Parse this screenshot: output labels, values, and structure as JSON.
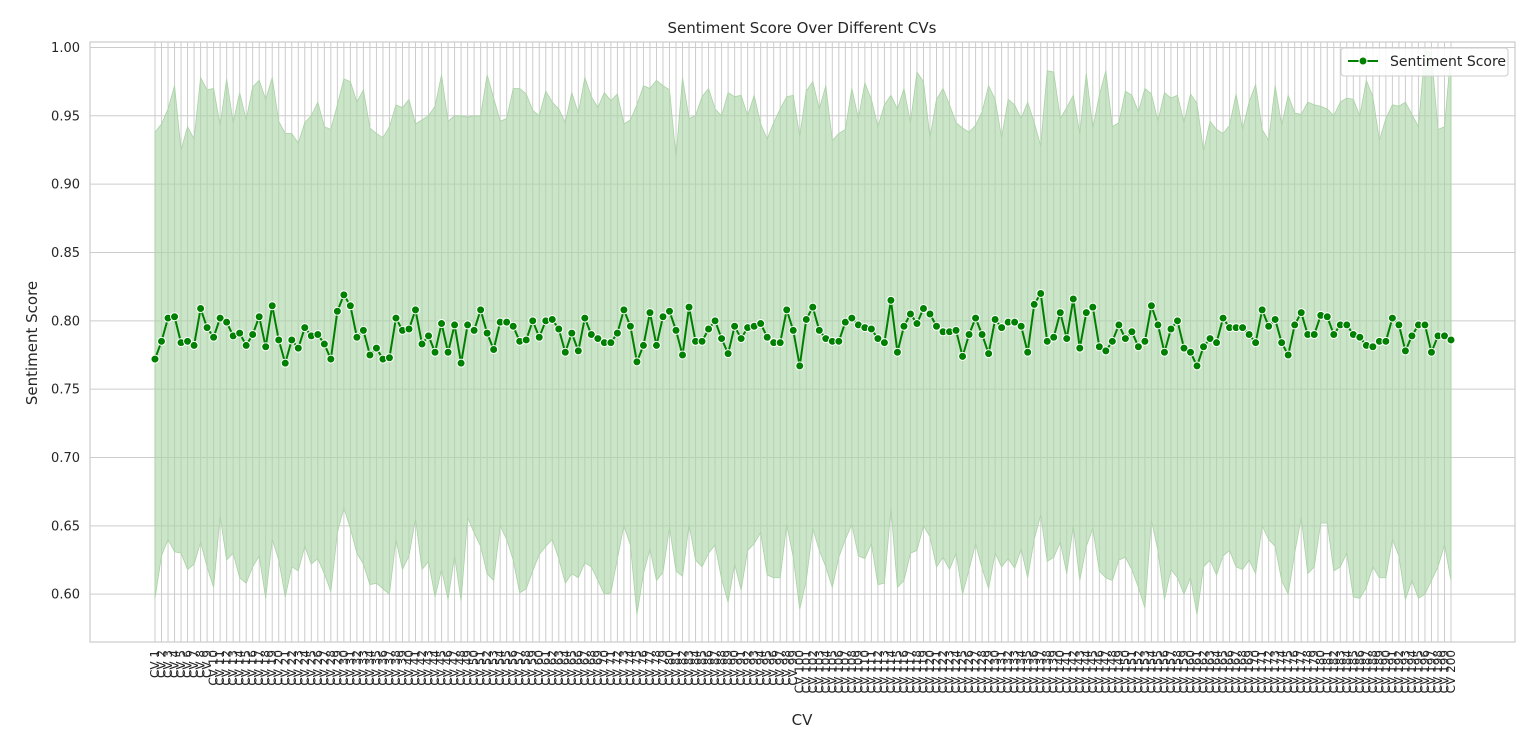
{
  "chart_data": {
    "type": "line",
    "title": "Sentiment Score Over Different CVs",
    "xlabel": "CV",
    "ylabel": "Sentiment Score",
    "ylim": [
      0.565,
      1.004
    ],
    "yticks": [
      0.6,
      0.65,
      0.7,
      0.75,
      0.8,
      0.85,
      0.9,
      0.95,
      1.0
    ],
    "ytick_labels": [
      "0.60",
      "0.65",
      "0.70",
      "0.75",
      "0.80",
      "0.85",
      "0.90",
      "0.95",
      "1.00"
    ],
    "grid": true,
    "legend": {
      "placement": "upper right",
      "entries": [
        "Sentiment Score"
      ]
    },
    "colors": {
      "line": "#008000",
      "band": "#a9d3a4",
      "grid": "#cccccc",
      "spine": "#cccccc"
    },
    "series": [
      {
        "name": "Sentiment Score",
        "values": [
          0.772,
          0.785,
          0.802,
          0.803,
          0.784,
          0.785,
          0.782,
          0.809,
          0.795,
          0.788,
          0.802,
          0.799,
          0.789,
          0.791,
          0.782,
          0.79,
          0.803,
          0.781,
          0.811,
          0.786,
          0.769,
          0.786,
          0.78,
          0.795,
          0.789,
          0.79,
          0.783,
          0.772,
          0.807,
          0.819,
          0.811,
          0.788,
          0.793,
          0.775,
          0.78,
          0.772,
          0.773,
          0.802,
          0.793,
          0.794,
          0.808,
          0.783,
          0.789,
          0.777,
          0.798,
          0.777,
          0.797,
          0.769,
          0.797,
          0.793,
          0.808,
          0.791,
          0.779,
          0.799,
          0.799,
          0.796,
          0.785,
          0.786,
          0.8,
          0.788,
          0.8,
          0.801,
          0.794,
          0.777,
          0.791,
          0.778,
          0.802,
          0.79,
          0.787,
          0.784,
          0.784,
          0.791,
          0.808,
          0.796,
          0.77,
          0.782,
          0.806,
          0.782,
          0.803,
          0.807,
          0.793,
          0.775,
          0.81,
          0.785,
          0.785,
          0.794,
          0.8,
          0.787,
          0.776,
          0.796,
          0.787,
          0.795,
          0.796,
          0.798,
          0.788,
          0.784,
          0.784,
          0.808,
          0.793,
          0.767,
          0.801,
          0.81,
          0.793,
          0.787,
          0.785,
          0.785,
          0.799,
          0.802,
          0.797,
          0.795,
          0.794,
          0.787,
          0.784,
          0.815,
          0.777,
          0.796,
          0.805,
          0.798,
          0.809,
          0.805,
          0.796,
          0.792,
          0.792,
          0.793,
          0.774,
          0.79,
          0.802,
          0.79,
          0.776,
          0.801,
          0.795,
          0.799,
          0.799,
          0.796,
          0.777,
          0.812,
          0.82,
          0.785,
          0.788,
          0.806,
          0.787,
          0.816,
          0.78,
          0.806,
          0.81,
          0.781,
          0.778,
          0.785,
          0.797,
          0.787,
          0.792,
          0.781,
          0.785,
          0.811,
          0.797,
          0.777,
          0.794,
          0.8,
          0.78,
          0.777,
          0.767,
          0.781,
          0.787,
          0.784,
          0.802,
          0.795,
          0.795,
          0.795,
          0.79,
          0.784,
          0.808,
          0.796,
          0.801,
          0.784,
          0.775,
          0.797,
          0.806,
          0.79,
          0.79,
          0.804,
          0.803,
          0.79,
          0.797,
          0.797,
          0.79,
          0.788,
          0.782,
          0.781,
          0.785,
          0.785,
          0.802,
          0.797,
          0.778,
          0.789,
          0.797,
          0.797,
          0.777,
          0.789,
          0.789,
          0.786
        ],
        "band_upper": [
          0.938,
          0.944,
          0.955,
          0.972,
          0.925,
          0.942,
          0.933,
          0.978,
          0.969,
          0.97,
          0.943,
          0.977,
          0.945,
          0.967,
          0.947,
          0.971,
          0.976,
          0.962,
          0.978,
          0.946,
          0.937,
          0.937,
          0.93,
          0.945,
          0.95,
          0.96,
          0.942,
          0.94,
          0.958,
          0.977,
          0.975,
          0.96,
          0.969,
          0.941,
          0.937,
          0.934,
          0.942,
          0.958,
          0.956,
          0.962,
          0.944,
          0.947,
          0.95,
          0.957,
          0.98,
          0.946,
          0.95,
          0.95,
          0.949,
          0.95,
          0.95,
          0.98,
          0.963,
          0.946,
          0.948,
          0.97,
          0.97,
          0.966,
          0.954,
          0.95,
          0.968,
          0.96,
          0.955,
          0.945,
          0.967,
          0.952,
          0.978,
          0.964,
          0.956,
          0.967,
          0.961,
          0.966,
          0.944,
          0.947,
          0.958,
          0.972,
          0.97,
          0.976,
          0.972,
          0.969,
          0.92,
          0.978,
          0.948,
          0.95,
          0.964,
          0.97,
          0.955,
          0.95,
          0.967,
          0.964,
          0.965,
          0.95,
          0.965,
          0.944,
          0.933,
          0.945,
          0.955,
          0.964,
          0.965,
          0.935,
          0.968,
          0.975,
          0.955,
          0.972,
          0.932,
          0.937,
          0.94,
          0.97,
          0.948,
          0.974,
          0.962,
          0.942,
          0.958,
          0.965,
          0.955,
          0.97,
          0.945,
          0.982,
          0.975,
          0.934,
          0.962,
          0.97,
          0.958,
          0.945,
          0.941,
          0.938,
          0.943,
          0.953,
          0.972,
          0.962,
          0.934,
          0.962,
          0.958,
          0.948,
          0.96,
          0.945,
          0.928,
          0.983,
          0.982,
          0.948,
          0.956,
          0.965,
          0.937,
          0.981,
          0.941,
          0.965,
          0.983,
          0.942,
          0.945,
          0.968,
          0.965,
          0.953,
          0.97,
          0.966,
          0.946,
          0.967,
          0.963,
          0.965,
          0.945,
          0.966,
          0.959,
          0.924,
          0.946,
          0.94,
          0.937,
          0.943,
          0.966,
          0.94,
          0.96,
          0.973,
          0.94,
          0.932,
          0.972,
          0.943,
          0.965,
          0.952,
          0.951,
          0.96,
          0.958,
          0.957,
          0.955,
          0.95,
          0.96,
          0.963,
          0.962,
          0.95,
          0.976,
          0.964,
          0.932,
          0.948,
          0.958,
          0.957,
          0.96,
          0.951,
          0.942,
          0.998,
          0.996,
          0.94,
          0.942,
          0.997,
          0.927
        ],
        "band_lower": [
          0.597,
          0.628,
          0.64,
          0.631,
          0.63,
          0.618,
          0.622,
          0.638,
          0.62,
          0.605,
          0.657,
          0.625,
          0.63,
          0.612,
          0.608,
          0.62,
          0.628,
          0.597,
          0.64,
          0.625,
          0.598,
          0.62,
          0.617,
          0.635,
          0.622,
          0.626,
          0.615,
          0.602,
          0.645,
          0.663,
          0.648,
          0.63,
          0.622,
          0.607,
          0.608,
          0.604,
          0.6,
          0.64,
          0.618,
          0.628,
          0.655,
          0.618,
          0.624,
          0.598,
          0.618,
          0.596,
          0.628,
          0.595,
          0.656,
          0.645,
          0.635,
          0.615,
          0.61,
          0.65,
          0.64,
          0.625,
          0.601,
          0.604,
          0.617,
          0.629,
          0.635,
          0.64,
          0.626,
          0.608,
          0.615,
          0.612,
          0.623,
          0.62,
          0.61,
          0.6,
          0.601,
          0.626,
          0.65,
          0.636,
          0.585,
          0.615,
          0.633,
          0.61,
          0.616,
          0.649,
          0.617,
          0.613,
          0.651,
          0.625,
          0.62,
          0.63,
          0.636,
          0.611,
          0.594,
          0.622,
          0.603,
          0.632,
          0.637,
          0.645,
          0.614,
          0.612,
          0.612,
          0.651,
          0.627,
          0.589,
          0.61,
          0.648,
          0.632,
          0.62,
          0.605,
          0.627,
          0.64,
          0.651,
          0.628,
          0.626,
          0.637,
          0.607,
          0.608,
          0.663,
          0.605,
          0.61,
          0.63,
          0.632,
          0.65,
          0.642,
          0.62,
          0.627,
          0.618,
          0.63,
          0.6,
          0.618,
          0.637,
          0.619,
          0.604,
          0.63,
          0.62,
          0.626,
          0.619,
          0.633,
          0.612,
          0.64,
          0.658,
          0.624,
          0.627,
          0.638,
          0.615,
          0.65,
          0.61,
          0.635,
          0.648,
          0.617,
          0.612,
          0.61,
          0.625,
          0.627,
          0.618,
          0.605,
          0.59,
          0.654,
          0.632,
          0.596,
          0.618,
          0.612,
          0.6,
          0.612,
          0.585,
          0.62,
          0.625,
          0.614,
          0.628,
          0.632,
          0.62,
          0.618,
          0.625,
          0.615,
          0.65,
          0.64,
          0.635,
          0.61,
          0.6,
          0.63,
          0.656,
          0.615,
          0.62,
          0.652,
          0.652,
          0.617,
          0.62,
          0.63,
          0.598,
          0.597,
          0.605,
          0.62,
          0.612,
          0.612,
          0.64,
          0.628,
          0.596,
          0.61,
          0.597,
          0.6,
          0.61,
          0.62,
          0.636,
          0.61,
          0.633
        ]
      }
    ]
  }
}
